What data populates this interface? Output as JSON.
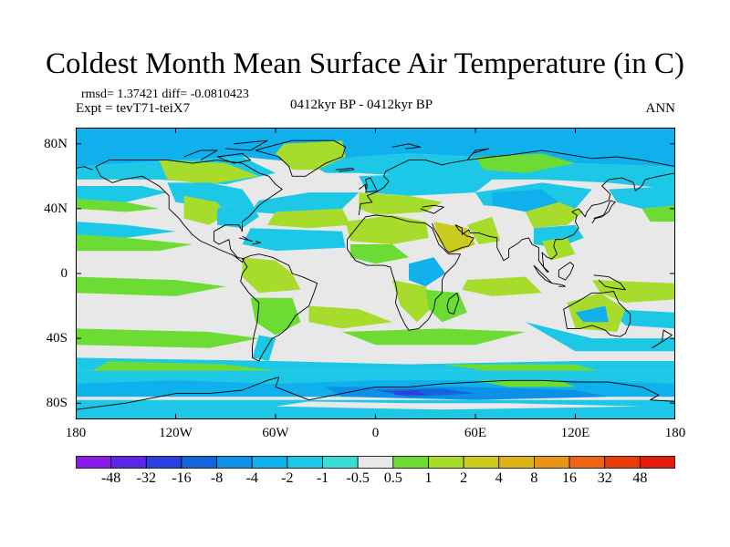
{
  "title": "Coldest Month Mean Surface Air Temperature (in C)",
  "stats": "rmsd= 1.37421 diff= -0.0810423",
  "experiment": "Expt = tevT71-teiX7",
  "period": "0412kyr BP - 0412kyr BP",
  "season": "ANN",
  "map": {
    "projection": "cylindrical equidistant",
    "lon_range": [
      -180,
      180
    ],
    "lat_range": [
      -90,
      90
    ],
    "y_ticks": [
      {
        "lat": 80,
        "label": "80N"
      },
      {
        "lat": 40,
        "label": "40N"
      },
      {
        "lat": 0,
        "label": "0"
      },
      {
        "lat": -40,
        "label": "40S"
      },
      {
        "lat": -80,
        "label": "80S"
      }
    ],
    "x_ticks": [
      {
        "lon": -180,
        "label": "180"
      },
      {
        "lon": -120,
        "label": "120W"
      },
      {
        "lon": -60,
        "label": "60W"
      },
      {
        "lon": 0,
        "label": "0"
      },
      {
        "lon": 60,
        "label": "60E"
      },
      {
        "lon": 120,
        "label": "120E"
      },
      {
        "lon": 180,
        "label": "180"
      }
    ]
  },
  "colorbar": {
    "levels": [
      "-48",
      "-32",
      "-16",
      "-8",
      "-4",
      "-2",
      "-1",
      "-0.5",
      "0.5",
      "1",
      "2",
      "4",
      "8",
      "16",
      "32",
      "48"
    ],
    "colors": [
      "#8a1ce8",
      "#5b26e6",
      "#2c3fe0",
      "#1464dc",
      "#0c90e8",
      "#10b0ec",
      "#1cc8e6",
      "#3cdcd0",
      "#e8e8e8",
      "#6cdc34",
      "#a8dc2c",
      "#cccc20",
      "#dcb418",
      "#e89418",
      "#ec6414",
      "#e83c0c",
      "#e41c0c"
    ]
  }
}
